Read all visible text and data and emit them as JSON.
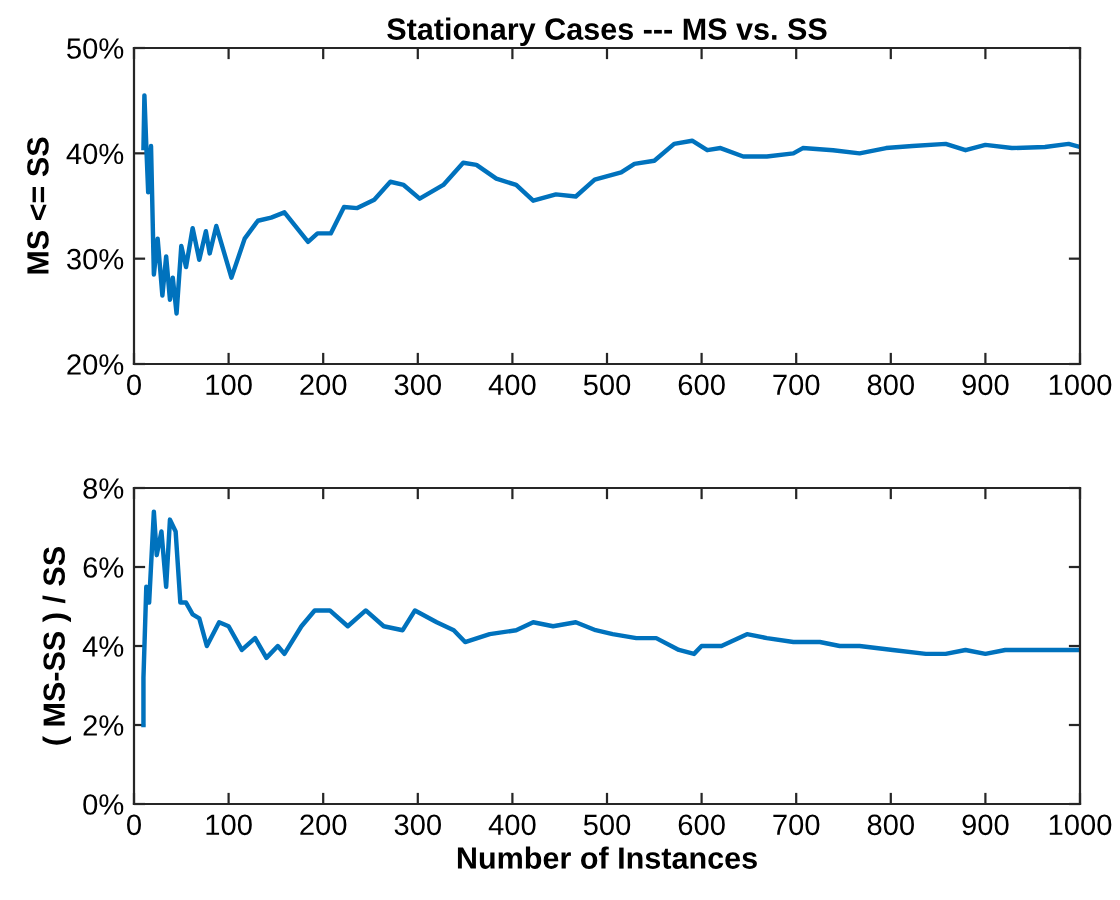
{
  "chart_data": [
    {
      "type": "line",
      "title": "Stationary Cases --- MS vs. SS",
      "ylabel": "MS <= SS",
      "xlim": [
        0,
        1000
      ],
      "xticks": [
        0,
        100,
        200,
        300,
        400,
        500,
        600,
        700,
        800,
        900,
        1000
      ],
      "ylim": [
        20,
        50
      ],
      "yticks": [
        {
          "value": 20,
          "label": "20%"
        },
        {
          "value": 30,
          "label": "30%"
        },
        {
          "value": 40,
          "label": "40%"
        },
        {
          "value": 50,
          "label": "50%"
        }
      ],
      "grid": false,
      "series": [
        {
          "color": "#0072bd",
          "x": [
            10,
            11,
            13,
            15,
            18,
            21,
            25,
            30,
            34,
            38,
            41,
            45,
            50,
            55,
            62,
            69,
            76,
            80,
            87,
            103,
            117,
            131,
            145,
            159,
            184,
            194,
            208,
            222,
            236,
            254,
            271,
            285,
            302,
            327,
            348,
            362,
            383,
            404,
            422,
            446,
            467,
            487,
            515,
            529,
            550,
            571,
            590,
            606,
            620,
            644,
            669,
            697,
            707,
            739,
            767,
            795,
            823,
            858,
            879,
            900,
            928,
            963,
            988,
            1000
          ],
          "values": [
            40.5,
            45.5,
            40.7,
            36.3,
            40.7,
            28.5,
            31.9,
            26.5,
            30.2,
            26.1,
            28.2,
            24.8,
            31.2,
            29.2,
            32.9,
            29.9,
            32.6,
            30.5,
            33.1,
            28.2,
            31.9,
            33.6,
            33.9,
            34.4,
            31.6,
            32.4,
            32.4,
            34.9,
            34.8,
            35.6,
            37.3,
            37.0,
            35.7,
            37.0,
            39.1,
            38.9,
            37.6,
            37.0,
            35.5,
            36.1,
            35.9,
            37.5,
            38.2,
            39.0,
            39.3,
            40.9,
            41.2,
            40.3,
            40.5,
            39.7,
            39.7,
            40.0,
            40.5,
            40.3,
            40.0,
            40.5,
            40.7,
            40.9,
            40.3,
            40.8,
            40.5,
            40.6,
            40.9,
            40.6
          ]
        }
      ]
    },
    {
      "type": "line",
      "xlabel": "Number of Instances",
      "ylabel": "( MS-SS ) / SS",
      "xlim": [
        0,
        1000
      ],
      "xticks": [
        0,
        100,
        200,
        300,
        400,
        500,
        600,
        700,
        800,
        900,
        1000
      ],
      "ylim": [
        0,
        8
      ],
      "yticks": [
        {
          "value": 0,
          "label": "0%"
        },
        {
          "value": 2,
          "label": "2%"
        },
        {
          "value": 4,
          "label": "4%"
        },
        {
          "value": 6,
          "label": "6%"
        },
        {
          "value": 8,
          "label": "8%"
        }
      ],
      "grid": false,
      "series": [
        {
          "color": "#0072bd",
          "x": [
            10,
            10,
            13,
            16,
            21,
            24,
            29,
            34,
            38,
            44,
            49,
            55,
            62,
            69,
            77,
            90,
            100,
            114,
            128,
            140,
            152,
            159,
            177,
            191,
            207,
            226,
            245,
            264,
            284,
            297,
            320,
            338,
            350,
            376,
            404,
            422,
            443,
            467,
            488,
            506,
            531,
            552,
            576,
            592,
            600,
            621,
            648,
            669,
            697,
            725,
            746,
            767,
            802,
            837,
            858,
            879,
            900,
            921,
            949,
            977,
            1000
          ],
          "values": [
            2.0,
            3.2,
            5.5,
            5.1,
            7.4,
            6.3,
            6.9,
            5.5,
            7.2,
            6.9,
            5.1,
            5.1,
            4.8,
            4.7,
            4.0,
            4.6,
            4.5,
            3.9,
            4.2,
            3.7,
            4.0,
            3.8,
            4.5,
            4.9,
            4.9,
            4.5,
            4.9,
            4.5,
            4.4,
            4.9,
            4.6,
            4.4,
            4.1,
            4.3,
            4.4,
            4.6,
            4.5,
            4.6,
            4.4,
            4.3,
            4.2,
            4.2,
            3.9,
            3.8,
            4.0,
            4.0,
            4.3,
            4.2,
            4.1,
            4.1,
            4.0,
            4.0,
            3.9,
            3.8,
            3.8,
            3.9,
            3.8,
            3.9,
            3.9,
            3.9,
            3.9
          ]
        }
      ]
    }
  ]
}
